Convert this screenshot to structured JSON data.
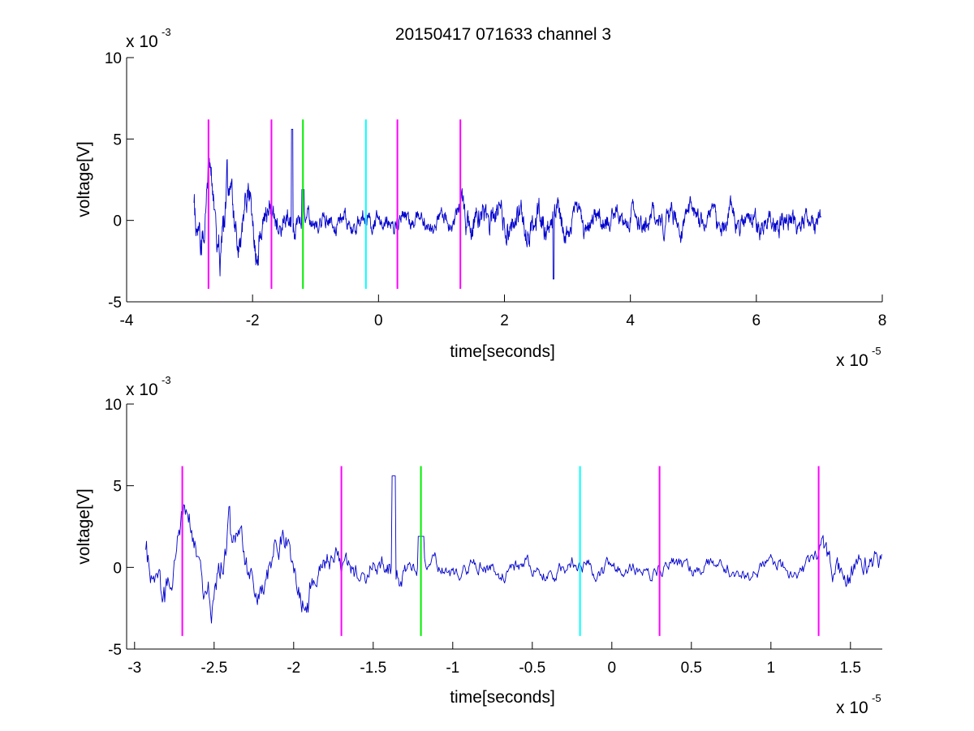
{
  "chart_data": [
    {
      "type": "line",
      "title": "20150417 071633 channel 3",
      "xlabel": "time[seconds]",
      "ylabel": "voltage[V]",
      "x_multiplier_label": "x 10",
      "x_multiplier_exponent": "-5",
      "y_multiplier_label": "x 10",
      "y_multiplier_exponent": "-3",
      "xlim": [
        -4,
        8
      ],
      "ylim": [
        -5,
        10
      ],
      "xticks": [
        -4,
        -2,
        0,
        2,
        4,
        6,
        8
      ],
      "xtick_labels": [
        "-4",
        "-2",
        "0",
        "2",
        "4",
        "6",
        "8"
      ],
      "yticks": [
        -5,
        0,
        5,
        10
      ],
      "ytick_labels": [
        "-5",
        "0",
        "5",
        "10"
      ],
      "grid": false,
      "series": [
        {
          "color": "#0000cc",
          "x_range": [
            -2.93,
            7.03
          ],
          "y_approx_range": [
            -3.6,
            5.6
          ]
        }
      ],
      "markers": [
        {
          "x": -2.7,
          "color": "#ff00ff",
          "y_range": [
            -4.2,
            6.2
          ]
        },
        {
          "x": -1.7,
          "color": "#ff00ff",
          "y_range": [
            -4.2,
            6.2
          ]
        },
        {
          "x": -1.2,
          "color": "#00ee00",
          "y_range": [
            -4.2,
            6.2
          ]
        },
        {
          "x": -0.2,
          "color": "#00ffff",
          "y_range": [
            -4.2,
            6.2
          ]
        },
        {
          "x": 0.3,
          "color": "#ff00ff",
          "y_range": [
            -4.2,
            6.2
          ]
        },
        {
          "x": 1.3,
          "color": "#ff00ff",
          "y_range": [
            -4.2,
            6.2
          ]
        }
      ]
    },
    {
      "type": "line",
      "xlabel": "time[seconds]",
      "ylabel": "voltage[V]",
      "x_multiplier_label": "x 10",
      "x_multiplier_exponent": "-5",
      "y_multiplier_label": "x 10",
      "y_multiplier_exponent": "-3",
      "xlim": [
        -3.05,
        1.7
      ],
      "ylim": [
        -5,
        10
      ],
      "xticks": [
        -3,
        -2.5,
        -2,
        -1.5,
        -1,
        -0.5,
        0,
        0.5,
        1,
        1.5
      ],
      "xtick_labels": [
        "-3",
        "-2.5",
        "-2",
        "-1.5",
        "-1",
        "-0.5",
        "0",
        "0.5",
        "1",
        "1.5"
      ],
      "yticks": [
        -5,
        0,
        5,
        10
      ],
      "ytick_labels": [
        "-5",
        "0",
        "5",
        "10"
      ],
      "grid": false,
      "series": [
        {
          "color": "#0000cc",
          "x_range": [
            -2.93,
            1.7
          ],
          "y_approx_range": [
            -3.6,
            5.6
          ]
        }
      ],
      "markers": [
        {
          "x": -2.7,
          "color": "#ff00ff",
          "y_range": [
            -4.2,
            6.2
          ]
        },
        {
          "x": -1.7,
          "color": "#ff00ff",
          "y_range": [
            -4.2,
            6.2
          ]
        },
        {
          "x": -1.2,
          "color": "#00ee00",
          "y_range": [
            -4.2,
            6.2
          ]
        },
        {
          "x": -0.2,
          "color": "#00ffff",
          "y_range": [
            -4.2,
            6.2
          ]
        },
        {
          "x": 0.3,
          "color": "#ff00ff",
          "y_range": [
            -4.2,
            6.2
          ]
        },
        {
          "x": 1.3,
          "color": "#ff00ff",
          "y_range": [
            -4.2,
            6.2
          ]
        }
      ]
    }
  ]
}
